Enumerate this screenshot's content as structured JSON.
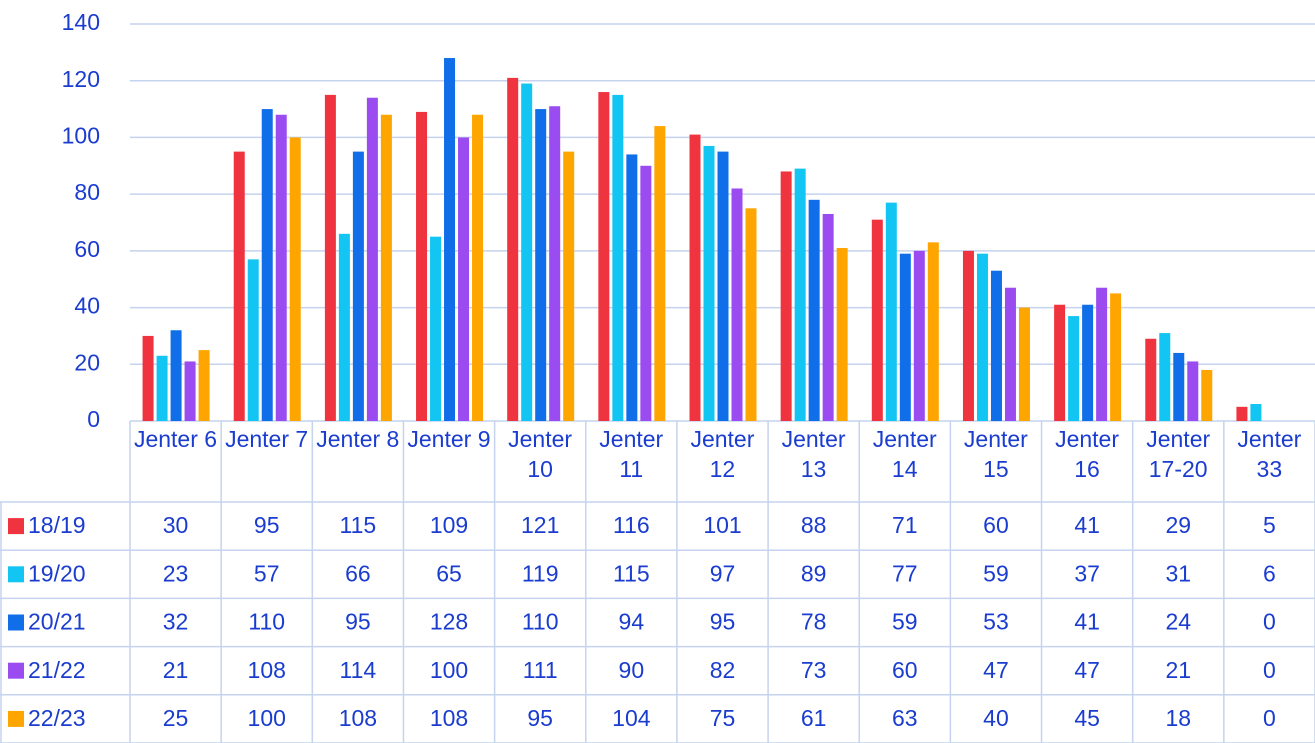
{
  "chart_data": {
    "type": "bar",
    "categories": [
      "Jenter 6",
      "Jenter 7",
      "Jenter 8",
      "Jenter 9",
      "Jenter 10",
      "Jenter 11",
      "Jenter 12",
      "Jenter 13",
      "Jenter 14",
      "Jenter 15",
      "Jenter 16",
      "Jenter 17-20",
      "Jenter 33"
    ],
    "series": [
      {
        "name": "18/19",
        "color": "#f0343f",
        "values": [
          30,
          95,
          115,
          109,
          121,
          116,
          101,
          88,
          71,
          60,
          41,
          29,
          5
        ]
      },
      {
        "name": "19/20",
        "color": "#13c5f2",
        "values": [
          23,
          57,
          66,
          65,
          119,
          115,
          97,
          89,
          77,
          59,
          37,
          31,
          6
        ]
      },
      {
        "name": "20/21",
        "color": "#0f6ee8",
        "values": [
          32,
          110,
          95,
          128,
          110,
          94,
          95,
          78,
          59,
          53,
          41,
          24,
          0
        ]
      },
      {
        "name": "21/22",
        "color": "#9b4cf0",
        "values": [
          21,
          108,
          114,
          100,
          111,
          90,
          82,
          73,
          60,
          47,
          47,
          21,
          0
        ]
      },
      {
        "name": "22/23",
        "color": "#ffa500",
        "values": [
          25,
          100,
          108,
          108,
          95,
          104,
          75,
          61,
          63,
          40,
          45,
          18,
          0
        ]
      }
    ],
    "ylim": [
      0,
      140
    ],
    "yticks": [
      0,
      20,
      40,
      60,
      80,
      100,
      120,
      140
    ],
    "grid": true,
    "data_table": true
  }
}
